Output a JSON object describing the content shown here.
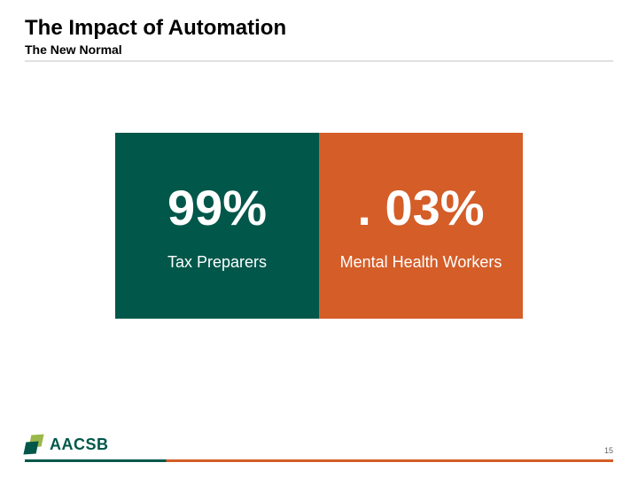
{
  "header": {
    "title": "The Impact of Automation",
    "subtitle": "The New Normal"
  },
  "stats": {
    "left": {
      "value": "99%",
      "label": "Tax Preparers",
      "background_color": "#00574a"
    },
    "right": {
      "value": ". 03%",
      "label": "Mental Health Workers",
      "background_color": "#d45d28"
    }
  },
  "footer": {
    "logo_text": "AACSB",
    "logo_colors": {
      "light": "#9bb84a",
      "dark": "#00574a"
    },
    "page_number": "15",
    "line_colors": {
      "left": "#00574a",
      "right": "#d45d28"
    }
  },
  "styling": {
    "title_fontsize": 24,
    "subtitle_fontsize": 14,
    "stat_value_fontsize": 56,
    "stat_label_fontsize": 18,
    "text_color_light": "#ffffff",
    "text_color_dark": "#000000",
    "background_color": "#ffffff"
  }
}
